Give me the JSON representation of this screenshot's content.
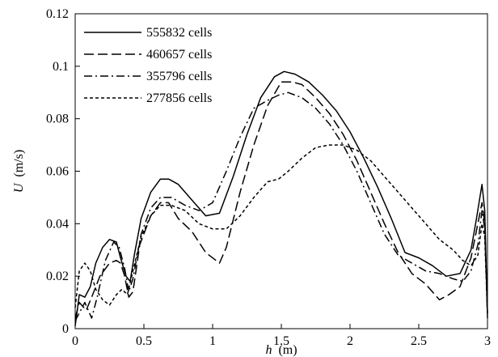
{
  "chart_data": {
    "type": "line",
    "title": "",
    "xlabel": "h",
    "xlabel_unit": "(m)",
    "ylabel": "U",
    "ylabel_unit": "(m/s)",
    "xlim": [
      0,
      3
    ],
    "ylim": [
      0,
      0.12
    ],
    "xticks": [
      0,
      0.5,
      1,
      1.5,
      2,
      2.5,
      3
    ],
    "xtick_labels": [
      "0",
      "0.5",
      "1",
      "1.5",
      "2",
      "2.5",
      "3"
    ],
    "yticks": [
      0,
      0.02,
      0.04,
      0.06,
      0.08,
      0.1,
      0.12
    ],
    "ytick_labels": [
      "0",
      "0.02",
      "0.04",
      "0.06",
      "0.08",
      "0.1",
      "0.12"
    ],
    "grid": false,
    "legend_position": "top-left",
    "series": [
      {
        "name": "555832 cells",
        "style": "solid",
        "color": "#000000",
        "x": [
          0,
          0.03,
          0.07,
          0.11,
          0.15,
          0.2,
          0.25,
          0.3,
          0.33,
          0.37,
          0.4,
          0.43,
          0.48,
          0.55,
          0.62,
          0.68,
          0.75,
          0.85,
          0.95,
          1.05,
          1.15,
          1.25,
          1.35,
          1.45,
          1.52,
          1.6,
          1.7,
          1.8,
          1.9,
          2.0,
          2.1,
          2.2,
          2.3,
          2.4,
          2.5,
          2.6,
          2.7,
          2.8,
          2.88,
          2.92,
          2.96,
          2.98,
          3.0
        ],
        "y": [
          0.001,
          0.013,
          0.012,
          0.016,
          0.025,
          0.031,
          0.034,
          0.033,
          0.027,
          0.02,
          0.018,
          0.028,
          0.042,
          0.052,
          0.057,
          0.057,
          0.055,
          0.049,
          0.043,
          0.044,
          0.058,
          0.074,
          0.088,
          0.096,
          0.098,
          0.097,
          0.094,
          0.089,
          0.083,
          0.075,
          0.065,
          0.054,
          0.042,
          0.029,
          0.027,
          0.024,
          0.02,
          0.021,
          0.03,
          0.042,
          0.055,
          0.045,
          0.004
        ]
      },
      {
        "name": "460657 cells",
        "style": "dashed",
        "color": "#000000",
        "x": [
          0,
          0.03,
          0.08,
          0.12,
          0.18,
          0.25,
          0.3,
          0.33,
          0.36,
          0.39,
          0.42,
          0.47,
          0.55,
          0.62,
          0.68,
          0.75,
          0.85,
          0.95,
          1.05,
          1.1,
          1.2,
          1.3,
          1.4,
          1.5,
          1.58,
          1.65,
          1.75,
          1.85,
          1.95,
          2.05,
          2.15,
          2.25,
          2.35,
          2.45,
          2.55,
          2.65,
          2.72,
          2.8,
          2.88,
          2.93,
          2.96,
          2.98,
          3.0
        ],
        "y": [
          0.004,
          0.01,
          0.007,
          0.012,
          0.02,
          0.025,
          0.026,
          0.025,
          0.02,
          0.012,
          0.014,
          0.032,
          0.043,
          0.048,
          0.048,
          0.042,
          0.037,
          0.029,
          0.025,
          0.031,
          0.052,
          0.07,
          0.085,
          0.094,
          0.094,
          0.093,
          0.088,
          0.082,
          0.074,
          0.064,
          0.052,
          0.04,
          0.029,
          0.021,
          0.017,
          0.011,
          0.013,
          0.016,
          0.027,
          0.04,
          0.048,
          0.04,
          0.006
        ]
      },
      {
        "name": "355796 cells",
        "style": "dashdot",
        "color": "#000000",
        "x": [
          0,
          0.03,
          0.07,
          0.12,
          0.16,
          0.22,
          0.28,
          0.32,
          0.36,
          0.39,
          0.42,
          0.48,
          0.55,
          0.62,
          0.7,
          0.8,
          0.9,
          1.0,
          1.1,
          1.2,
          1.3,
          1.4,
          1.48,
          1.55,
          1.65,
          1.75,
          1.85,
          1.95,
          2.05,
          2.15,
          2.25,
          2.35,
          2.45,
          2.55,
          2.65,
          2.75,
          2.82,
          2.88,
          2.93,
          2.96,
          2.98,
          3.0
        ],
        "y": [
          0.003,
          0.006,
          0.01,
          0.004,
          0.012,
          0.026,
          0.033,
          0.031,
          0.023,
          0.014,
          0.019,
          0.036,
          0.046,
          0.05,
          0.05,
          0.047,
          0.045,
          0.048,
          0.06,
          0.073,
          0.084,
          0.087,
          0.089,
          0.09,
          0.088,
          0.084,
          0.078,
          0.07,
          0.06,
          0.048,
          0.036,
          0.028,
          0.025,
          0.022,
          0.021,
          0.019,
          0.018,
          0.022,
          0.032,
          0.045,
          0.038,
          0.005
        ]
      },
      {
        "name": "277856 cells",
        "style": "dotted",
        "color": "#000000",
        "x": [
          0,
          0.03,
          0.07,
          0.11,
          0.15,
          0.2,
          0.25,
          0.3,
          0.34,
          0.38,
          0.42,
          0.48,
          0.55,
          0.62,
          0.7,
          0.8,
          0.9,
          1.0,
          1.1,
          1.2,
          1.3,
          1.4,
          1.48,
          1.55,
          1.65,
          1.75,
          1.85,
          1.95,
          2.05,
          2.15,
          2.25,
          2.35,
          2.45,
          2.55,
          2.65,
          2.75,
          2.82,
          2.88,
          2.93,
          2.96,
          2.98,
          3.0
        ],
        "y": [
          0.008,
          0.022,
          0.025,
          0.022,
          0.015,
          0.011,
          0.009,
          0.013,
          0.015,
          0.013,
          0.022,
          0.035,
          0.043,
          0.047,
          0.047,
          0.045,
          0.04,
          0.038,
          0.038,
          0.043,
          0.05,
          0.056,
          0.057,
          0.06,
          0.065,
          0.069,
          0.07,
          0.07,
          0.068,
          0.064,
          0.058,
          0.052,
          0.046,
          0.04,
          0.034,
          0.03,
          0.026,
          0.024,
          0.028,
          0.04,
          0.035,
          0.005
        ]
      }
    ]
  }
}
